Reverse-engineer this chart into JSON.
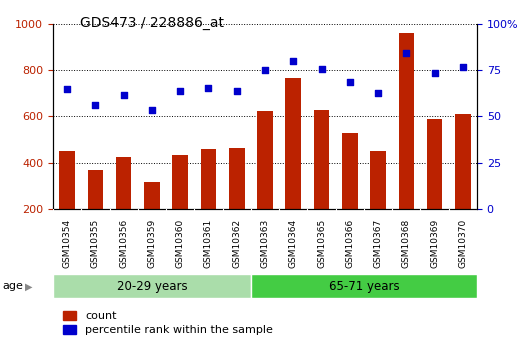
{
  "title": "GDS473 / 228886_at",
  "samples": [
    "GSM10354",
    "GSM10355",
    "GSM10356",
    "GSM10359",
    "GSM10360",
    "GSM10361",
    "GSM10362",
    "GSM10363",
    "GSM10364",
    "GSM10365",
    "GSM10366",
    "GSM10367",
    "GSM10368",
    "GSM10369",
    "GSM10370"
  ],
  "counts": [
    450,
    370,
    425,
    315,
    435,
    460,
    465,
    625,
    765,
    630,
    530,
    450,
    960,
    590,
    610
  ],
  "percentiles": [
    720,
    650,
    695,
    630,
    710,
    725,
    710,
    800,
    840,
    805,
    750,
    700,
    875,
    790,
    815
  ],
  "group1_label": "20-29 years",
  "group2_label": "65-71 years",
  "group1_count": 7,
  "group2_count": 8,
  "ylim_left": [
    200,
    1000
  ],
  "ylim_right": [
    0,
    100
  ],
  "yticks_left": [
    200,
    400,
    600,
    800,
    1000
  ],
  "yticks_right": [
    0,
    25,
    50,
    75,
    100
  ],
  "bar_color": "#bb2200",
  "scatter_color": "#0000cc",
  "grid_color": "#000000",
  "xtick_bg_color": "#c8c8c8",
  "group1_bg": "#aaddaa",
  "group2_bg": "#44cc44",
  "legend_count_label": "count",
  "legend_pct_label": "percentile rank within the sample",
  "age_label": "age"
}
